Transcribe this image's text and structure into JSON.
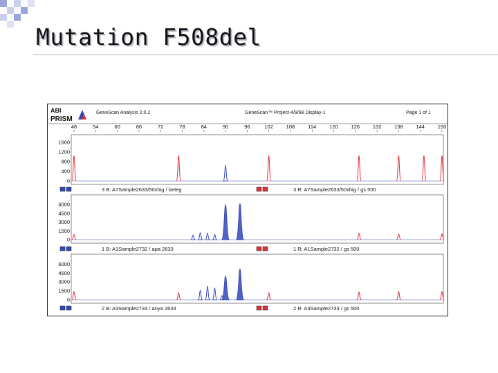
{
  "slide": {
    "title": "Mutation F508del"
  },
  "header": {
    "logo_line1": "ABI",
    "logo_line2": "PRISM",
    "software": "GeneScan Analysis 2.0.2",
    "project": "GeneScan™ Project-4/9/98 Display-1",
    "page": "Page 1 of 1"
  },
  "colors": {
    "blue_trace": "#3348b8",
    "red_trace": "#e0303a",
    "frame": "#555555",
    "background": "#ffffff"
  },
  "chart_data": [
    {
      "type": "line",
      "x_ticks": [
        "48",
        "54",
        "60",
        "66",
        "72",
        "78",
        "84",
        "90",
        "96",
        "102",
        "108",
        "114",
        "120",
        "126",
        "132",
        "138",
        "144",
        "150"
      ],
      "xlim": [
        48,
        150
      ],
      "ylim": [
        0,
        1800
      ],
      "y_ticks": [
        "1600",
        "1200",
        "800",
        "400",
        "0"
      ],
      "lane_labels": [
        "3 B: A7Sample2633/50xhig / beteg",
        "3 R: A7Sample2633/50xhig / gs 500"
      ],
      "series": [
        {
          "color": "red",
          "peaks": [
            {
              "x": 48,
              "y": 1050
            },
            {
              "x": 77,
              "y": 1050
            },
            {
              "x": 102,
              "y": 1050
            },
            {
              "x": 127,
              "y": 1050
            },
            {
              "x": 138,
              "y": 1050
            },
            {
              "x": 145,
              "y": 1050
            },
            {
              "x": 150,
              "y": 1050
            }
          ]
        },
        {
          "color": "blue",
          "peaks": [
            {
              "x": 90,
              "y": 650
            }
          ]
        }
      ]
    },
    {
      "type": "line",
      "xlim": [
        48,
        150
      ],
      "ylim": [
        0,
        7200
      ],
      "y_ticks": [
        "6000",
        "4500",
        "3000",
        "1500",
        "0"
      ],
      "lane_labels": [
        "1 B: A1Sample2732 / apa 2633",
        "1 R: A1Sample2732 / gs 500"
      ],
      "series": [
        {
          "color": "red",
          "peaks": [
            {
              "x": 48,
              "y": 900
            },
            {
              "x": 127,
              "y": 1100
            },
            {
              "x": 138,
              "y": 1000
            },
            {
              "x": 150,
              "y": 1000
            }
          ]
        },
        {
          "color": "blue",
          "peaks": [
            {
              "x": 81,
              "y": 800
            },
            {
              "x": 83,
              "y": 1200
            },
            {
              "x": 85,
              "y": 1100
            },
            {
              "x": 87,
              "y": 900
            },
            {
              "x": 90,
              "y": 6000
            },
            {
              "x": 94,
              "y": 6200
            }
          ]
        }
      ]
    },
    {
      "type": "line",
      "xlim": [
        48,
        150
      ],
      "ylim": [
        0,
        7200
      ],
      "y_ticks": [
        "6000",
        "4500",
        "3000",
        "1500",
        "0"
      ],
      "lane_labels": [
        "2 B: A3Sample2733 / anya 2633",
        "2 R: A3Sample2733 / gs 500"
      ],
      "series": [
        {
          "color": "red",
          "peaks": [
            {
              "x": 48,
              "y": 1400
            },
            {
              "x": 77,
              "y": 1200
            },
            {
              "x": 102,
              "y": 1200
            },
            {
              "x": 127,
              "y": 1300
            },
            {
              "x": 138,
              "y": 1400
            },
            {
              "x": 150,
              "y": 1400
            }
          ]
        },
        {
          "color": "blue",
          "peaks": [
            {
              "x": 83,
              "y": 1600
            },
            {
              "x": 85,
              "y": 2300
            },
            {
              "x": 87,
              "y": 2000
            },
            {
              "x": 89,
              "y": 700
            },
            {
              "x": 90,
              "y": 4000
            },
            {
              "x": 94,
              "y": 5200
            }
          ]
        }
      ]
    }
  ]
}
